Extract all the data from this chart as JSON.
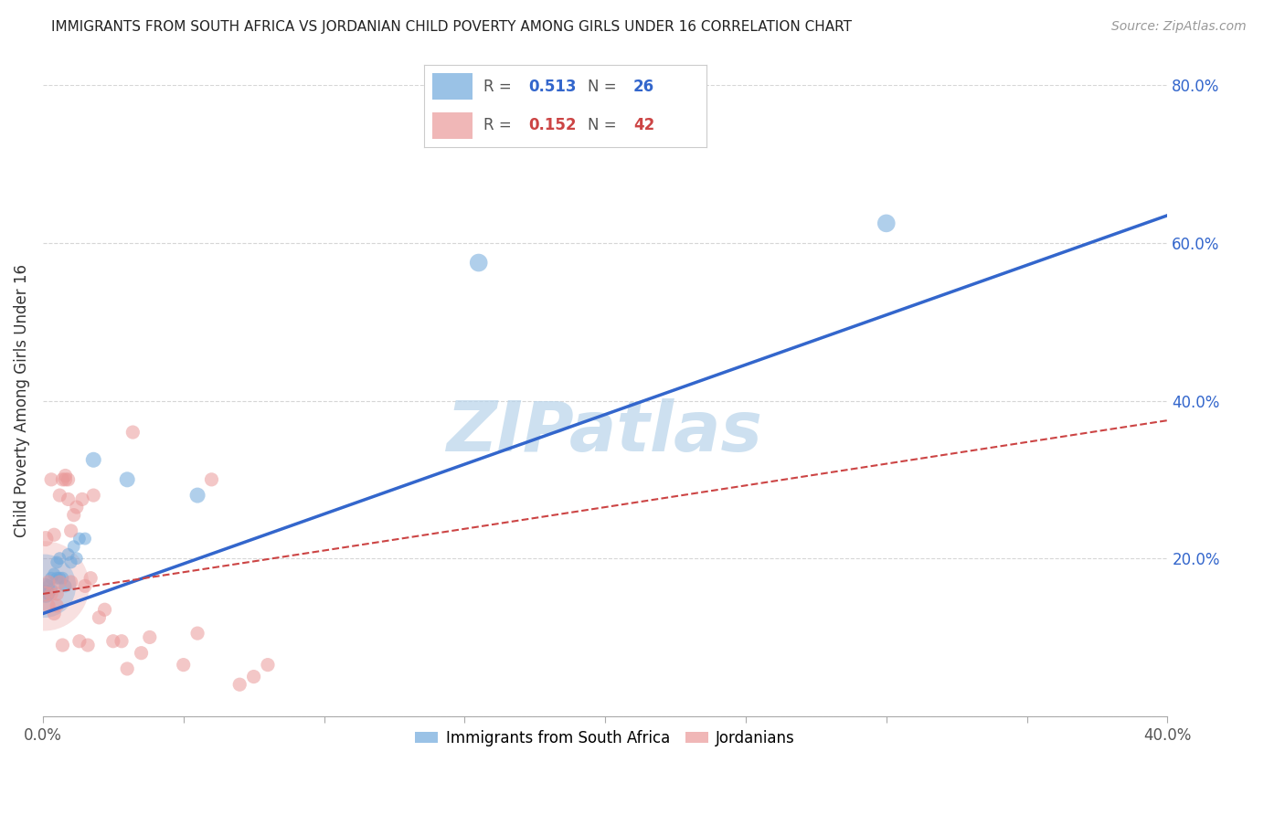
{
  "title": "IMMIGRANTS FROM SOUTH AFRICA VS JORDANIAN CHILD POVERTY AMONG GIRLS UNDER 16 CORRELATION CHART",
  "source": "Source: ZipAtlas.com",
  "ylabel": "Child Poverty Among Girls Under 16",
  "xlim": [
    0.0,
    0.4
  ],
  "ylim": [
    0.0,
    0.8
  ],
  "yticks": [
    0.0,
    0.2,
    0.4,
    0.6,
    0.8
  ],
  "ytick_labels": [
    "",
    "20.0%",
    "40.0%",
    "60.0%",
    "80.0%"
  ],
  "xtick_positions": [
    0.0,
    0.05,
    0.1,
    0.15,
    0.2,
    0.25,
    0.3,
    0.35,
    0.4
  ],
  "blue_R": 0.513,
  "blue_N": 26,
  "pink_R": 0.152,
  "pink_N": 42,
  "blue_color": "#6fa8dc",
  "pink_color": "#ea9999",
  "blue_line_color": "#3366cc",
  "pink_line_color": "#cc4444",
  "watermark": "ZIPatlas",
  "watermark_color": "#b8d4ea",
  "blue_line_y0": 0.13,
  "blue_line_y1": 0.635,
  "pink_line_y0": 0.155,
  "pink_line_y1": 0.375,
  "blue_x": [
    0.001,
    0.001,
    0.002,
    0.002,
    0.003,
    0.003,
    0.004,
    0.005,
    0.005,
    0.006,
    0.006,
    0.007,
    0.008,
    0.009,
    0.01,
    0.011,
    0.012,
    0.013,
    0.015,
    0.018,
    0.03,
    0.055,
    0.155,
    0.3
  ],
  "blue_y": [
    0.155,
    0.165,
    0.155,
    0.165,
    0.16,
    0.175,
    0.18,
    0.175,
    0.195,
    0.175,
    0.2,
    0.175,
    0.165,
    0.205,
    0.195,
    0.215,
    0.2,
    0.225,
    0.225,
    0.325,
    0.3,
    0.28,
    0.575,
    0.625
  ],
  "blue_s": [
    200,
    150,
    100,
    100,
    100,
    100,
    100,
    100,
    100,
    100,
    100,
    100,
    100,
    100,
    100,
    100,
    100,
    100,
    100,
    150,
    150,
    150,
    200,
    200
  ],
  "blue_large_x": [
    0.0005
  ],
  "blue_large_y": [
    0.165
  ],
  "blue_large_s": [
    2500
  ],
  "pink_x": [
    0.001,
    0.001,
    0.002,
    0.002,
    0.003,
    0.003,
    0.004,
    0.004,
    0.005,
    0.005,
    0.006,
    0.006,
    0.007,
    0.007,
    0.008,
    0.008,
    0.009,
    0.009,
    0.01,
    0.01,
    0.011,
    0.012,
    0.013,
    0.014,
    0.015,
    0.016,
    0.017,
    0.018,
    0.02,
    0.022,
    0.025,
    0.028,
    0.03,
    0.032,
    0.035,
    0.038,
    0.05,
    0.055,
    0.06,
    0.07,
    0.075,
    0.08
  ],
  "pink_y": [
    0.155,
    0.225,
    0.14,
    0.17,
    0.155,
    0.3,
    0.13,
    0.23,
    0.14,
    0.155,
    0.17,
    0.28,
    0.3,
    0.09,
    0.3,
    0.305,
    0.275,
    0.3,
    0.17,
    0.235,
    0.255,
    0.265,
    0.095,
    0.275,
    0.165,
    0.09,
    0.175,
    0.28,
    0.125,
    0.135,
    0.095,
    0.095,
    0.06,
    0.36,
    0.08,
    0.1,
    0.065,
    0.105,
    0.3,
    0.04,
    0.05,
    0.065
  ],
  "pink_s": [
    150,
    150,
    120,
    120,
    120,
    120,
    120,
    120,
    120,
    120,
    120,
    120,
    120,
    120,
    120,
    120,
    120,
    120,
    120,
    120,
    120,
    120,
    120,
    120,
    120,
    120,
    120,
    120,
    120,
    120,
    120,
    120,
    120,
    120,
    120,
    120,
    120,
    120,
    120,
    120,
    120,
    120
  ],
  "pink_large_x": [
    0.0005
  ],
  "pink_large_y": [
    0.165
  ],
  "pink_large_s": [
    5000
  ],
  "background_color": "#ffffff",
  "grid_color": "#cccccc",
  "legend_blue_label": "Immigrants from South Africa",
  "legend_pink_label": "Jordanians"
}
